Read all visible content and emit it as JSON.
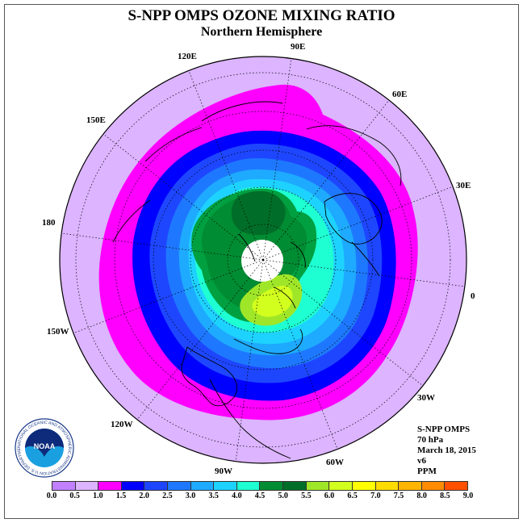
{
  "title": "S-NPP OMPS OZONE MIXING RATIO",
  "subtitle": "Northern Hemisphere",
  "longitude_labels": {
    "lon_90e": "90E",
    "lon_60e": "60E",
    "lon_30e": "30E",
    "lon_0": "0",
    "lon_30w": "30W",
    "lon_60w": "60W",
    "lon_90w": "90W",
    "lon_120w": "120W",
    "lon_150w": "150W",
    "lon_180": "180",
    "lon_150e": "150E",
    "lon_120e": "120E"
  },
  "info": {
    "instrument": "S-NPP OMPS",
    "level": "70 hPa",
    "date": "March 18, 2015",
    "version": "v6",
    "units": "PPM"
  },
  "colorbar": {
    "colors": [
      "#c080ff",
      "#dcb4ff",
      "#ff00ff",
      "#ff00ff",
      "#0000ff",
      "#1e46ff",
      "#1e78ff",
      "#1eaaff",
      "#1ed2ff",
      "#1effd2",
      "#00a040",
      "#008c32",
      "#006e28",
      "#a0e628",
      "#d2ff1e",
      "#ffff00",
      "#ffdc00",
      "#ffb400",
      "#ff8c00",
      "#ff5000",
      "#ff0000",
      "#a05028"
    ],
    "ticks": [
      "0.0",
      "0.5",
      "1.0",
      "1.5",
      "2.0",
      "2.5",
      "3.0",
      "3.5",
      "4.0",
      "4.5",
      "5.0",
      "5.5",
      "6.0",
      "6.5",
      "7.0",
      "7.5",
      "8.0",
      "8.5",
      "9.0"
    ]
  },
  "logo": {
    "name": "noaa-logo",
    "text": "NOAA",
    "ring_text": "NATIONAL OCEANIC AND ATMOSPHERIC ADMINISTRATION U.S. DEPARTMENT OF COMMERCE"
  }
}
